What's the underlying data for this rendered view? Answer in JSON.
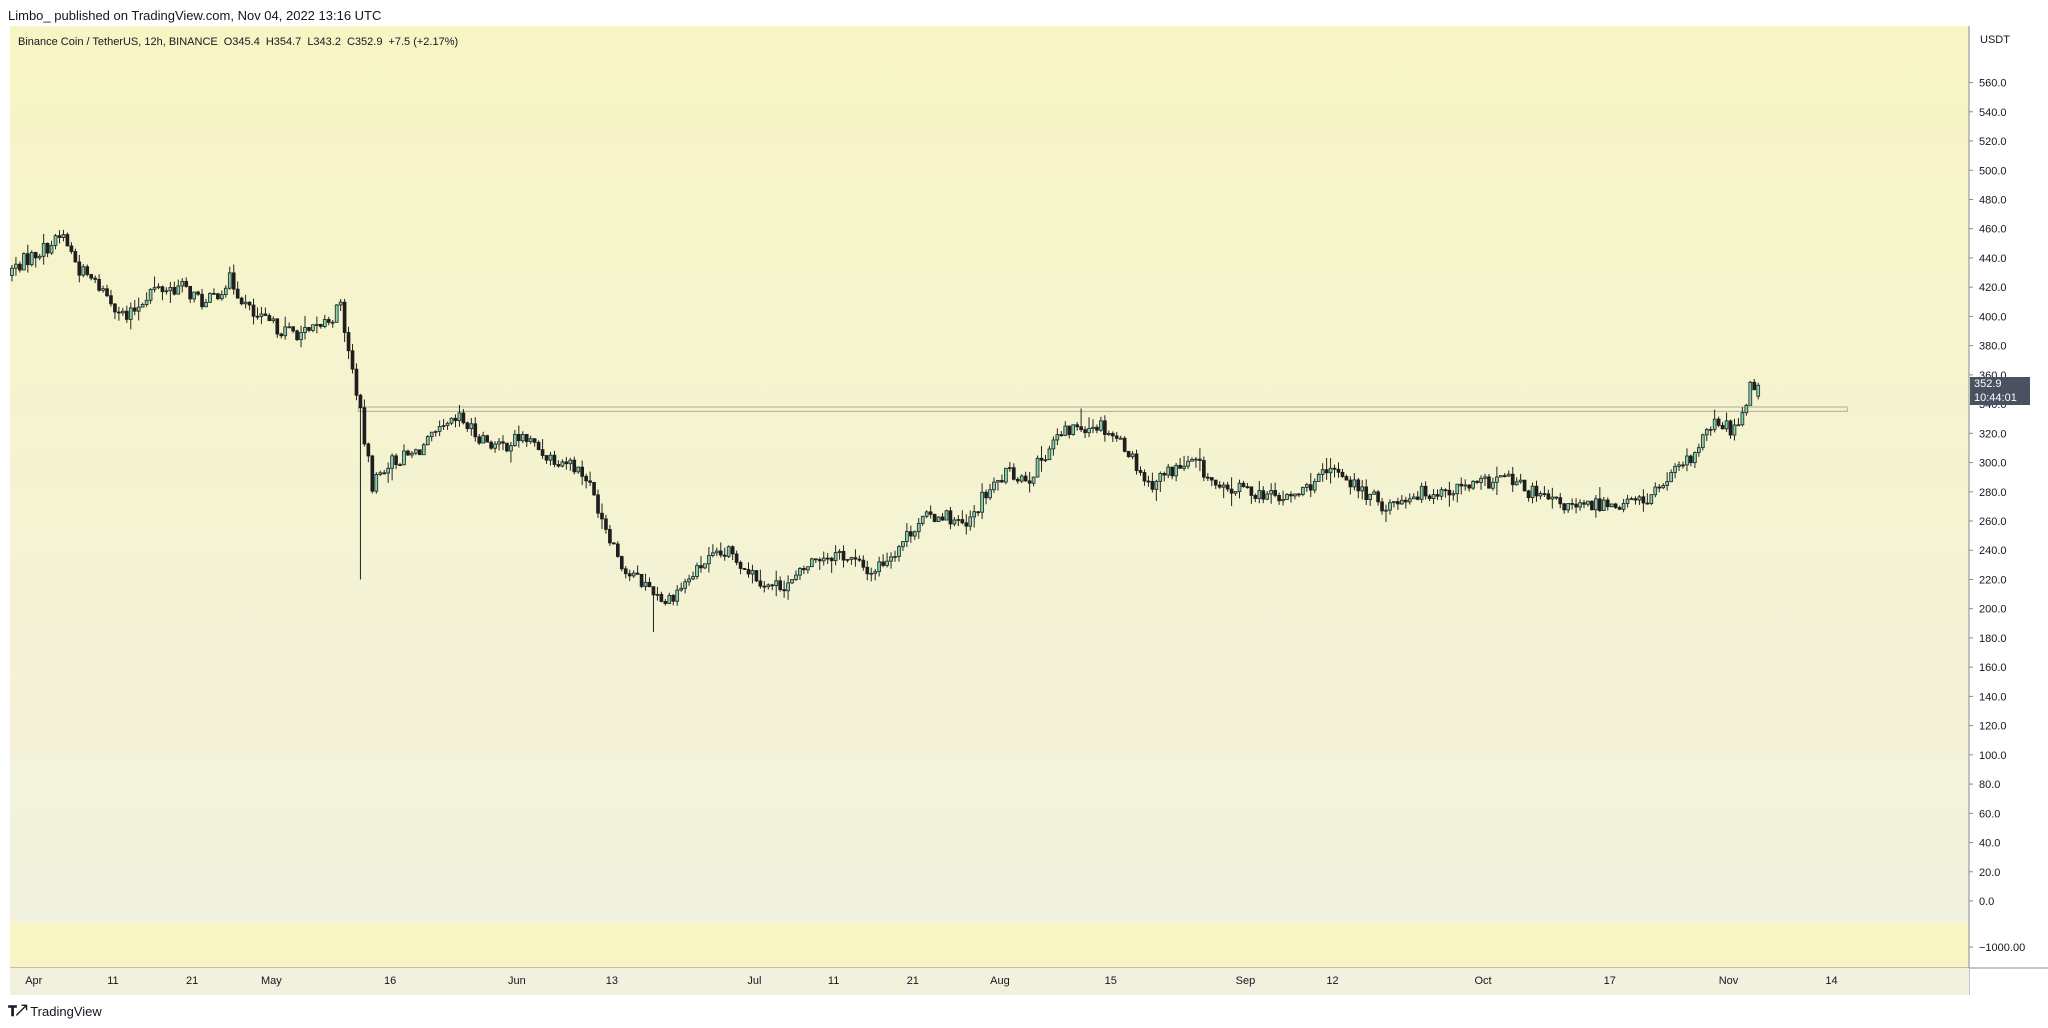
{
  "header": {
    "credit": "Limbo_ published on TradingView.com, Nov 04, 2022 13:16 UTC"
  },
  "legend": {
    "symbol": "Binance Coin / TetherUS, 12h, BINANCE",
    "open": "O345.4",
    "high": "H354.7",
    "low": "L343.2",
    "close": "C352.9",
    "change": "+7.5 (+2.17%)"
  },
  "price_axis": {
    "unit": "USDT",
    "ticks": [
      "560.0",
      "540.0",
      "520.0",
      "500.0",
      "480.0",
      "460.0",
      "440.0",
      "420.0",
      "400.0",
      "380.0",
      "360.0",
      "340.0",
      "320.0",
      "300.0",
      "280.0",
      "260.0",
      "240.0",
      "220.0",
      "200.0",
      "180.0",
      "160.0",
      "140.0",
      "120.0",
      "100.0",
      "80.0",
      "60.0",
      "40.0",
      "20.0",
      "0.0",
      "−1000.00"
    ],
    "last_price": "352.9",
    "countdown": "10:44:01"
  },
  "time_axis": {
    "ticks": [
      "Apr",
      "11",
      "21",
      "May",
      "16",
      "Jun",
      "13",
      "Jul",
      "11",
      "21",
      "Aug",
      "15",
      "Sep",
      "12",
      "Oct",
      "17",
      "Nov",
      "14"
    ]
  },
  "footer": {
    "brand": "TradingView",
    "brand_icon": "tradingview-logo-icon"
  },
  "colors": {
    "background_top": "#f7f5c4",
    "background_bottom": "#f2f1de",
    "candle_up": "#7fd6ae",
    "candle_down": "#1e1e1e",
    "wick": "#222222",
    "zone_line": "#b8b8a0",
    "tag_bg": "#4a5160"
  },
  "chart_data": {
    "type": "candlestick",
    "title": "Binance Coin / TetherUS, 12h, BINANCE",
    "ylabel": "USDT",
    "ylim": [
      0,
      570
    ],
    "timeframe": "12h",
    "x_range": [
      "2022-03-29",
      "2022-11-20"
    ],
    "grid": false,
    "horizontal_zone": [
      335,
      338
    ],
    "anchors": [
      [
        "2022-03-29",
        430
      ],
      [
        "2022-03-31",
        438
      ],
      [
        "2022-04-03",
        448
      ],
      [
        "2022-04-05",
        455
      ],
      [
        "2022-04-07",
        432
      ],
      [
        "2022-04-10",
        418
      ],
      [
        "2022-04-13",
        398
      ],
      [
        "2022-04-16",
        418
      ],
      [
        "2022-04-20",
        420
      ],
      [
        "2022-04-23",
        408
      ],
      [
        "2022-04-26",
        425
      ],
      [
        "2022-04-29",
        400
      ],
      [
        "2022-05-03",
        390
      ],
      [
        "2022-05-06",
        388
      ],
      [
        "2022-05-09",
        400
      ],
      [
        "2022-05-10",
        408
      ],
      [
        "2022-05-11",
        375
      ],
      [
        "2022-05-12",
        350
      ],
      [
        "2022-05-13",
        315
      ],
      [
        "2022-05-14",
        285
      ],
      [
        "2022-05-16",
        300
      ],
      [
        "2022-05-19",
        305
      ],
      [
        "2022-05-22",
        318
      ],
      [
        "2022-05-25",
        330
      ],
      [
        "2022-05-27",
        320
      ],
      [
        "2022-05-30",
        310
      ],
      [
        "2022-06-02",
        318
      ],
      [
        "2022-06-05",
        305
      ],
      [
        "2022-06-08",
        300
      ],
      [
        "2022-06-10",
        290
      ],
      [
        "2022-06-13",
        250
      ],
      [
        "2022-06-15",
        225
      ],
      [
        "2022-06-18",
        215
      ],
      [
        "2022-06-20",
        205
      ],
      [
        "2022-06-23",
        220
      ],
      [
        "2022-06-25",
        232
      ],
      [
        "2022-06-28",
        238
      ],
      [
        "2022-07-01",
        225
      ],
      [
        "2022-07-03",
        215
      ],
      [
        "2022-07-06",
        218
      ],
      [
        "2022-07-09",
        235
      ],
      [
        "2022-07-12",
        238
      ],
      [
        "2022-07-16",
        225
      ],
      [
        "2022-07-19",
        240
      ],
      [
        "2022-07-22",
        260
      ],
      [
        "2022-07-25",
        265
      ],
      [
        "2022-07-28",
        255
      ],
      [
        "2022-07-30",
        275
      ],
      [
        "2022-08-02",
        292
      ],
      [
        "2022-08-05",
        290
      ],
      [
        "2022-08-08",
        315
      ],
      [
        "2022-08-11",
        325
      ],
      [
        "2022-08-14",
        326
      ],
      [
        "2022-08-17",
        312
      ],
      [
        "2022-08-20",
        285
      ],
      [
        "2022-08-23",
        295
      ],
      [
        "2022-08-26",
        300
      ],
      [
        "2022-08-29",
        280
      ],
      [
        "2022-09-01",
        282
      ],
      [
        "2022-09-04",
        278
      ],
      [
        "2022-09-06",
        275
      ],
      [
        "2022-09-08",
        278
      ],
      [
        "2022-09-10",
        288
      ],
      [
        "2022-09-13",
        295
      ],
      [
        "2022-09-16",
        280
      ],
      [
        "2022-09-19",
        270
      ],
      [
        "2022-09-22",
        278
      ],
      [
        "2022-09-25",
        280
      ],
      [
        "2022-09-28",
        282
      ],
      [
        "2022-10-01",
        285
      ],
      [
        "2022-10-04",
        290
      ],
      [
        "2022-10-07",
        280
      ],
      [
        "2022-10-10",
        273
      ],
      [
        "2022-10-13",
        268
      ],
      [
        "2022-10-16",
        272
      ],
      [
        "2022-10-19",
        272
      ],
      [
        "2022-10-22",
        275
      ],
      [
        "2022-10-25",
        290
      ],
      [
        "2022-10-28",
        305
      ],
      [
        "2022-10-30",
        325
      ],
      [
        "2022-11-01",
        325
      ],
      [
        "2022-11-02",
        322
      ],
      [
        "2022-11-03",
        335
      ],
      [
        "2022-11-04",
        352.9
      ]
    ],
    "wick_extremes": [
      [
        "2022-05-12",
        220
      ],
      [
        "2022-06-18",
        184
      ],
      [
        "2022-04-04",
        459
      ],
      [
        "2022-08-11",
        337
      ],
      [
        "2022-11-04",
        354.7
      ],
      [
        "2022-05-10",
        412
      ]
    ],
    "last_candle": {
      "open": 345.4,
      "high": 354.7,
      "low": 343.2,
      "close": 352.9
    }
  }
}
